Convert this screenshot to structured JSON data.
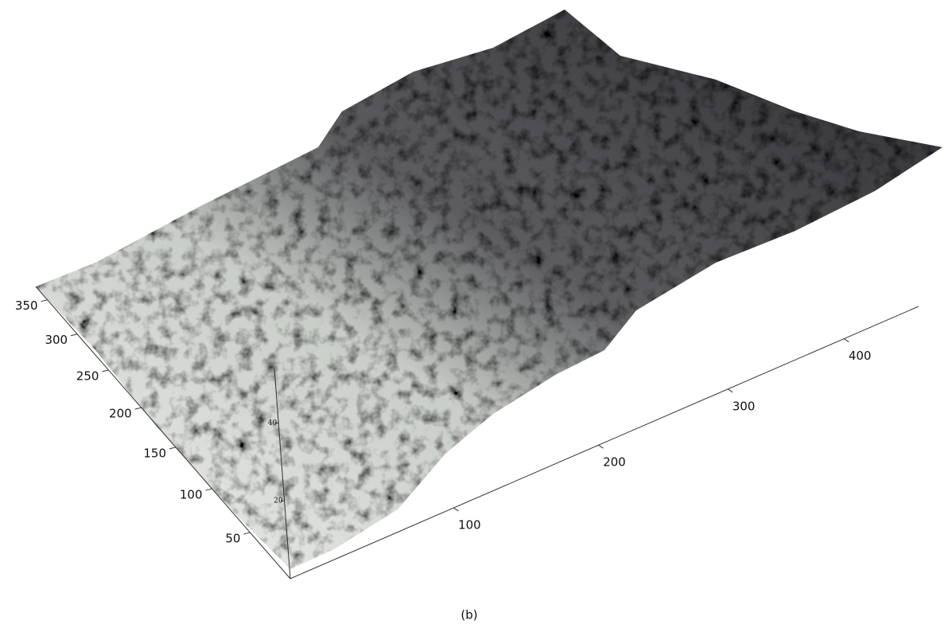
{
  "chart_data": {
    "type": "surface3d",
    "caption": "(b)",
    "xlim": [
      0,
      470
    ],
    "xticks": [
      100,
      200,
      300,
      400
    ],
    "ylim": [
      0,
      370
    ],
    "yticks": [
      50,
      100,
      150,
      200,
      250,
      300,
      350
    ],
    "zlim": [
      0,
      54
    ],
    "zticks": [
      20,
      40
    ]
  }
}
